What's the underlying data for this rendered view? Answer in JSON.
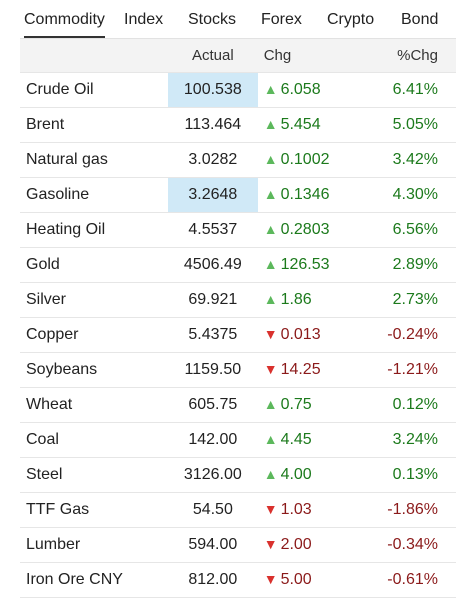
{
  "tabs": [
    "Commodity",
    "Index",
    "Stocks",
    "Forex",
    "Crypto",
    "Bond"
  ],
  "active_tab": "Commodity",
  "columns": {
    "name": "",
    "actual": "Actual",
    "chg": "Chg",
    "pct": "%Chg"
  },
  "colors": {
    "up": "#1c7a1c",
    "down": "#8b1a1a",
    "highlight": "#d0e9f7"
  },
  "rows": [
    {
      "name": "Crude Oil",
      "actual": "100.538",
      "chg": "6.058",
      "pct": "6.41%",
      "dir": "up",
      "highlight": true
    },
    {
      "name": "Brent",
      "actual": "113.464",
      "chg": "5.454",
      "pct": "5.05%",
      "dir": "up",
      "highlight": false
    },
    {
      "name": "Natural gas",
      "actual": "3.0282",
      "chg": "0.1002",
      "pct": "3.42%",
      "dir": "up",
      "highlight": false
    },
    {
      "name": "Gasoline",
      "actual": "3.2648",
      "chg": "0.1346",
      "pct": "4.30%",
      "dir": "up",
      "highlight": true
    },
    {
      "name": "Heating Oil",
      "actual": "4.5537",
      "chg": "0.2803",
      "pct": "6.56%",
      "dir": "up",
      "highlight": false
    },
    {
      "name": "Gold",
      "actual": "4506.49",
      "chg": "126.53",
      "pct": "2.89%",
      "dir": "up",
      "highlight": false
    },
    {
      "name": "Silver",
      "actual": "69.921",
      "chg": "1.86",
      "pct": "2.73%",
      "dir": "up",
      "highlight": false
    },
    {
      "name": "Copper",
      "actual": "5.4375",
      "chg": "0.013",
      "pct": "-0.24%",
      "dir": "down",
      "highlight": false
    },
    {
      "name": "Soybeans",
      "actual": "1159.50",
      "chg": "14.25",
      "pct": "-1.21%",
      "dir": "down",
      "highlight": false
    },
    {
      "name": "Wheat",
      "actual": "605.75",
      "chg": "0.75",
      "pct": "0.12%",
      "dir": "up",
      "highlight": false
    },
    {
      "name": "Coal",
      "actual": "142.00",
      "chg": "4.45",
      "pct": "3.24%",
      "dir": "up",
      "highlight": false
    },
    {
      "name": "Steel",
      "actual": "3126.00",
      "chg": "4.00",
      "pct": "0.13%",
      "dir": "up",
      "highlight": false
    },
    {
      "name": "TTF Gas",
      "actual": "54.50",
      "chg": "1.03",
      "pct": "-1.86%",
      "dir": "down",
      "highlight": false
    },
    {
      "name": "Lumber",
      "actual": "594.00",
      "chg": "2.00",
      "pct": "-0.34%",
      "dir": "down",
      "highlight": false
    },
    {
      "name": "Iron Ore CNY",
      "actual": "812.00",
      "chg": "5.00",
      "pct": "-0.61%",
      "dir": "down",
      "highlight": false
    }
  ]
}
